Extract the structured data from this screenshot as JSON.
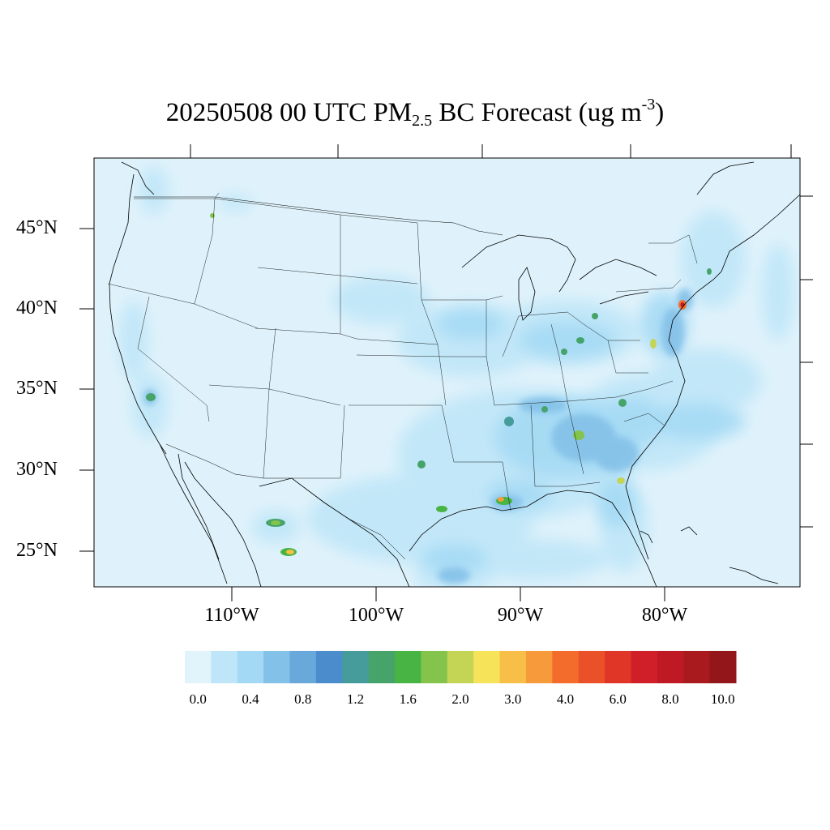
{
  "title": {
    "date_time": "20250508 00 UTC PM",
    "subscript": "2.5",
    "suffix": " BC Forecast (ug m",
    "superscript": "-3",
    "close": ")"
  },
  "map": {
    "lat_labels": [
      "45°N",
      "40°N",
      "35°N",
      "30°N",
      "25°N"
    ],
    "lon_labels": [
      "110°W",
      "100°W",
      "90°W",
      "80°W"
    ],
    "background_color": "#dff2fb",
    "boundary_color": "#000000"
  },
  "colorbar": {
    "colors": [
      "#e1f3fb",
      "#bfe6f8",
      "#a3d9f4",
      "#84c1e8",
      "#68a8da",
      "#4a8ccc",
      "#469b9b",
      "#46a46b",
      "#48b444",
      "#84c44c",
      "#c4d454",
      "#f6e35a",
      "#f8bf48",
      "#f69a3c",
      "#f46c2c",
      "#ea5128",
      "#df3628",
      "#d11f2a",
      "#bf1a24",
      "#a91a1e",
      "#92161a"
    ],
    "labels": [
      "0.0",
      "0.4",
      "0.8",
      "1.2",
      "1.6",
      "2.0",
      "3.0",
      "4.0",
      "6.0",
      "8.0",
      "10.0"
    ]
  }
}
